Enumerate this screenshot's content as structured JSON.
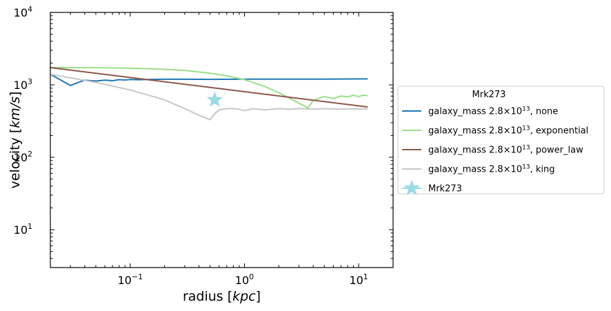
{
  "chart_data": {
    "type": "line",
    "xscale": "log",
    "yscale": "log",
    "xlim": [
      0.02,
      20
    ],
    "ylim": [
      3,
      10000
    ],
    "xlabel_parts": [
      "radius [",
      "kpc",
      "]"
    ],
    "ylabel_parts": [
      "velocity [",
      "km/s",
      "]"
    ],
    "x_ticks": [
      {
        "value": 0.1,
        "base": "10",
        "exp": "−1"
      },
      {
        "value": 1,
        "base": "10",
        "exp": "0"
      },
      {
        "value": 10,
        "base": "10",
        "exp": "1"
      }
    ],
    "y_ticks": [
      {
        "value": 10,
        "base": "10",
        "exp": "1"
      },
      {
        "value": 100,
        "base": "10",
        "exp": "2"
      },
      {
        "value": 1000,
        "base": "10",
        "exp": "3"
      },
      {
        "value": 10000,
        "base": "10",
        "exp": "4"
      }
    ],
    "grid": false,
    "legend": {
      "title": "Mrk273",
      "placement": "right, outside plot"
    },
    "series": [
      {
        "name_prefix": "galaxy_mass 2.8×10",
        "name_exp": "13",
        "name_suffix": ", none",
        "color": "#1f77b4",
        "x": [
          0.02,
          0.025,
          0.03,
          0.035,
          0.04,
          0.05,
          0.06,
          0.07,
          0.08,
          0.09,
          0.1,
          0.12,
          0.15,
          0.2,
          0.3,
          0.5,
          1,
          2,
          5,
          12
        ],
        "y": [
          1400,
          1150,
          980,
          1080,
          1160,
          1130,
          1160,
          1140,
          1180,
          1165,
          1185,
          1175,
          1190,
          1195,
          1195,
          1190,
          1200,
          1200,
          1200,
          1210
        ]
      },
      {
        "name_prefix": "galaxy_mass 2.8×10",
        "name_exp": "13",
        "name_suffix": ", exponential",
        "color": "#98df8a",
        "x": [
          0.02,
          0.05,
          0.1,
          0.2,
          0.3,
          0.5,
          0.7,
          1,
          1.5,
          2,
          2.5,
          3,
          3.6,
          4,
          5,
          6,
          7,
          8,
          9,
          10,
          11,
          12
        ],
        "y": [
          1730,
          1725,
          1700,
          1640,
          1580,
          1450,
          1330,
          1180,
          950,
          780,
          650,
          560,
          480,
          610,
          690,
          650,
          700,
          680,
          720,
          690,
          720,
          710
        ]
      },
      {
        "name_prefix": "galaxy_mass 2.8×10",
        "name_exp": "13",
        "name_suffix": ", power_law",
        "color": "#8c564b",
        "x": [
          0.02,
          12
        ],
        "y": [
          1730,
          495
        ]
      },
      {
        "name_prefix": "galaxy_mass 2.8×10",
        "name_exp": "13",
        "name_suffix": ", king",
        "color": "#c7c7c7",
        "x": [
          0.02,
          0.05,
          0.1,
          0.2,
          0.3,
          0.4,
          0.5,
          0.55,
          0.6,
          0.7,
          0.8,
          0.9,
          1,
          1.2,
          1.5,
          2,
          2.5,
          3,
          4,
          5,
          7,
          10,
          12
        ],
        "y": [
          1400,
          1080,
          850,
          620,
          470,
          380,
          330,
          400,
          450,
          470,
          470,
          460,
          440,
          470,
          450,
          470,
          460,
          470,
          462,
          468,
          462,
          466,
          464
        ]
      }
    ],
    "points": [
      {
        "name": "Mrk273",
        "color": "#9edae5",
        "marker": "star",
        "x": 0.55,
        "y": 620
      }
    ]
  }
}
